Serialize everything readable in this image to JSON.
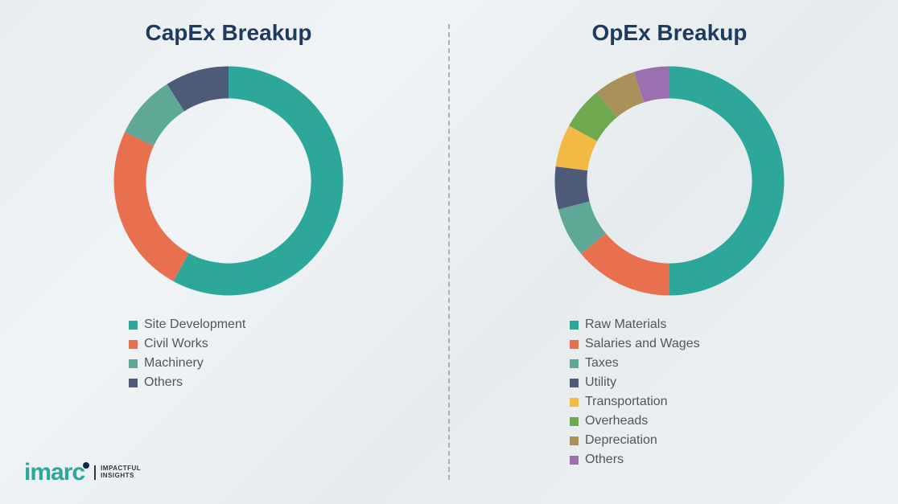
{
  "background_gradient": [
    "#e8edf0",
    "#f0f4f6",
    "#e6ebee",
    "#eef2f4"
  ],
  "divider_color": "#aab1b8",
  "teal": "#2ca79a",
  "title_color": "#1e3a5f",
  "legend_text_color": "#555555",
  "capex": {
    "title": "CapEx Breakup",
    "title_fontsize": 28,
    "donut_thickness": 0.28,
    "rotation_start_deg": -90,
    "slices": [
      {
        "label": "Site Development",
        "value": 58,
        "color": "#2ca79a"
      },
      {
        "label": "Civil Works",
        "value": 24,
        "color": "#e8704f"
      },
      {
        "label": "Machinery",
        "value": 9,
        "color": "#5fa896"
      },
      {
        "label": "Others",
        "value": 9,
        "color": "#4d5a78"
      }
    ]
  },
  "opex": {
    "title": "OpEx Breakup",
    "title_fontsize": 28,
    "donut_thickness": 0.28,
    "rotation_start_deg": -90,
    "slices": [
      {
        "label": "Raw Materials",
        "value": 50,
        "color": "#2ca79a"
      },
      {
        "label": "Salaries and Wages",
        "value": 14,
        "color": "#e8704f"
      },
      {
        "label": "Taxes",
        "value": 7,
        "color": "#5fa896"
      },
      {
        "label": "Utility",
        "value": 6,
        "color": "#4d5a78"
      },
      {
        "label": "Transportation",
        "value": 6,
        "color": "#f2b945"
      },
      {
        "label": "Overheads",
        "value": 6,
        "color": "#6ea84f"
      },
      {
        "label": "Depreciation",
        "value": 6,
        "color": "#a8915a"
      },
      {
        "label": "Others",
        "value": 5,
        "color": "#9c6fb0"
      }
    ]
  },
  "logo": {
    "text": "imarc",
    "color": "#2ca79a",
    "dot_color": "#0b2a4a",
    "tagline_line1": "IMPACTFUL",
    "tagline_line2": "INSIGHTS"
  }
}
